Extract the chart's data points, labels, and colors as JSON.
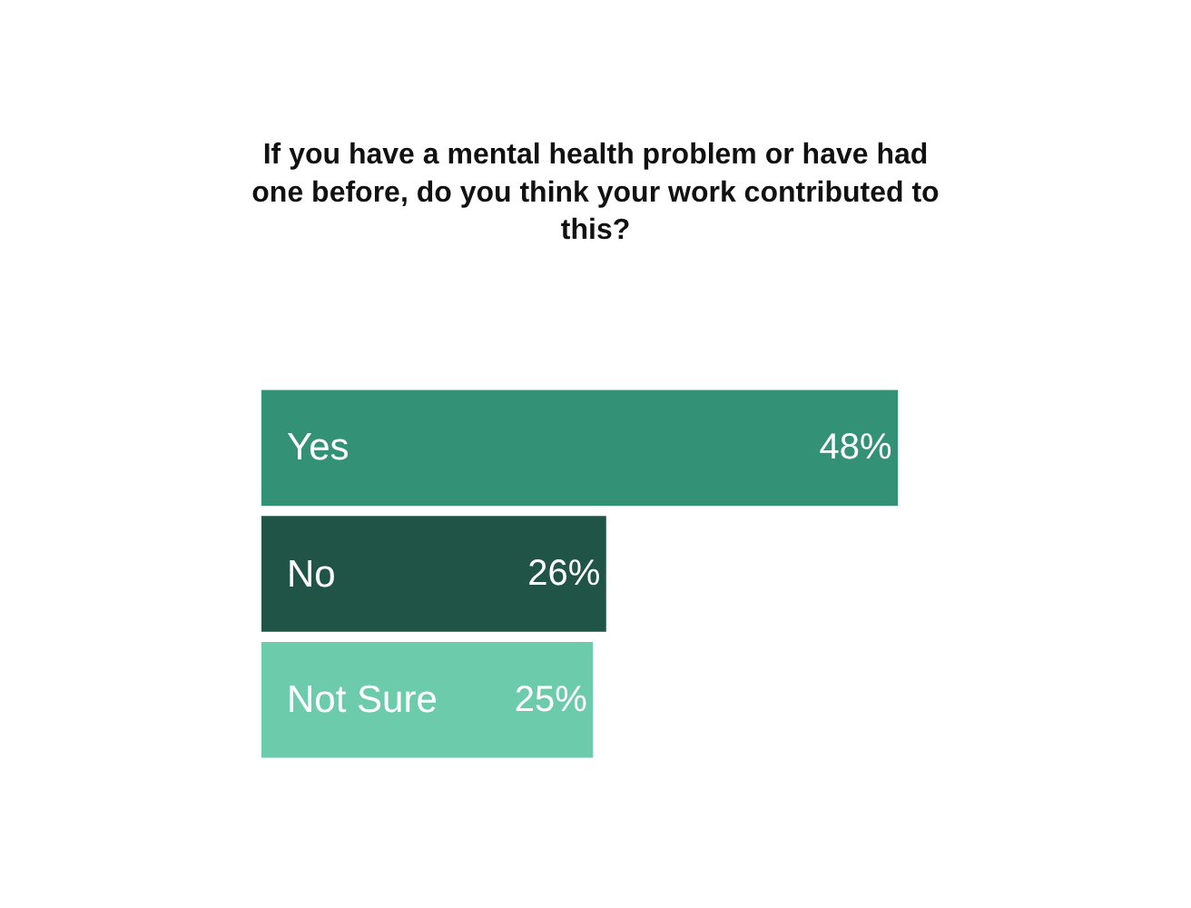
{
  "chart_data": {
    "type": "bar",
    "orientation": "horizontal",
    "title": "If you have a mental health problem or have had\none before, do you think your work contributed to\nthis?",
    "categories": [
      "Yes",
      "No",
      "Not Sure"
    ],
    "values": [
      48,
      26,
      25
    ],
    "colors": [
      "#339176",
      "#1f5446",
      "#6ccbab"
    ],
    "value_labels": [
      "48%",
      "26%",
      "25%"
    ],
    "grid": false
  }
}
